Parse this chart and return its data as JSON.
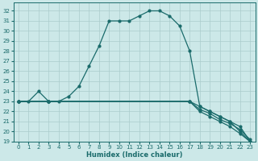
{
  "xlabel": "Humidex (Indice chaleur)",
  "xlim": [
    -0.5,
    23.5
  ],
  "ylim": [
    19,
    32.8
  ],
  "yticks": [
    19,
    20,
    21,
    22,
    23,
    24,
    25,
    26,
    27,
    28,
    29,
    30,
    31,
    32
  ],
  "xticks": [
    0,
    1,
    2,
    3,
    4,
    5,
    6,
    7,
    8,
    9,
    10,
    11,
    12,
    13,
    14,
    15,
    16,
    17,
    18,
    19,
    20,
    21,
    22,
    23
  ],
  "bg_color": "#cce8e8",
  "grid_color": "#aacccc",
  "line_color": "#1a6b6b",
  "line1_x": [
    0,
    1,
    2,
    3,
    4,
    5,
    6,
    7,
    8,
    9,
    10,
    11,
    12,
    13,
    14,
    15,
    16,
    17,
    18,
    19,
    20,
    21,
    22,
    23
  ],
  "line1_y": [
    23,
    23,
    24,
    23,
    23,
    23.5,
    24.5,
    26.5,
    28.5,
    31,
    31,
    31,
    31.5,
    32,
    32,
    31.5,
    30.5,
    28,
    22.5,
    22,
    21.5,
    21,
    20,
    19
  ],
  "line2_x": [
    0,
    3,
    17,
    18,
    19,
    20,
    21,
    22,
    23
  ],
  "line2_y": [
    23,
    23,
    23,
    22.5,
    22,
    21.5,
    21,
    20.5,
    19
  ],
  "line3_x": [
    0,
    3,
    17,
    18,
    19,
    20,
    21,
    22,
    23
  ],
  "line3_y": [
    23,
    23,
    23,
    22.2,
    21.8,
    21.2,
    20.8,
    20.2,
    19.2
  ],
  "line4_x": [
    0,
    3,
    17,
    18,
    19,
    20,
    21,
    22,
    23
  ],
  "line4_y": [
    23,
    23,
    23,
    22,
    21.5,
    21,
    20.5,
    19.8,
    19
  ]
}
